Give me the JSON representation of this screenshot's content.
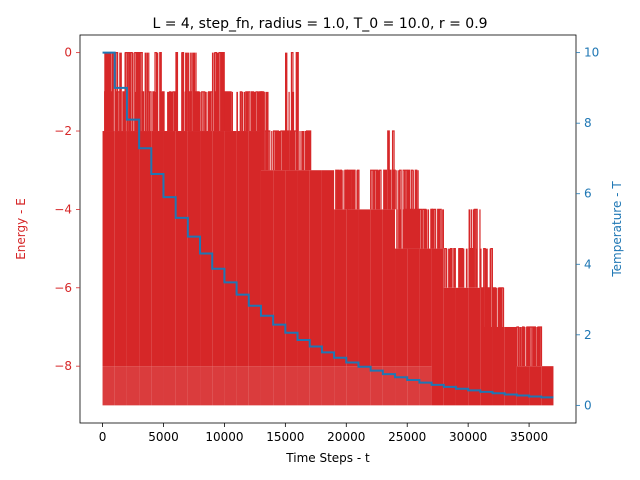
{
  "chart_data": {
    "type": "line",
    "title": "L = 4, step_fn, radius = 1.0, T_0 = 10.0, r = 0.9",
    "xlabel": "Time Steps - t",
    "ylabel_left": "Energy - E",
    "ylabel_right": "Temperature - T",
    "xlim": [
      -1850,
      38850
    ],
    "ylim_left": [
      -9.45,
      0.45
    ],
    "ylim_right": [
      -0.5,
      10.5
    ],
    "x_ticks": [
      0,
      5000,
      10000,
      15000,
      20000,
      25000,
      30000,
      35000
    ],
    "x_tick_labels": [
      "0",
      "5000",
      "10000",
      "15000",
      "20000",
      "25000",
      "30000",
      "35000"
    ],
    "y_left_ticks": [
      0,
      -2,
      -4,
      -6,
      -8
    ],
    "y_left_tick_labels": [
      "0",
      "−2",
      "−4",
      "−6",
      "−8"
    ],
    "y_right_ticks": [
      0,
      2,
      4,
      6,
      8,
      10
    ],
    "y_right_tick_labels": [
      "0",
      "2",
      "4",
      "6",
      "8",
      "10"
    ],
    "grid": false,
    "colors": {
      "energy": "#d62728",
      "temperature": "#1f77b4"
    },
    "series": [
      {
        "axis": "left",
        "note": "noisy energy trace; envelope per step-block",
        "blocks": [
          {
            "x0": 0,
            "x1": 1000,
            "ymin": -9,
            "ymax": 0,
            "dense_low": -8,
            "dense_high": -2
          },
          {
            "x0": 1000,
            "x1": 2000,
            "ymin": -9,
            "ymax": 0,
            "dense_low": -8,
            "dense_high": -2
          },
          {
            "x0": 2000,
            "x1": 3000,
            "ymin": -9,
            "ymax": 0,
            "dense_low": -8,
            "dense_high": -2
          },
          {
            "x0": 3000,
            "x1": 4000,
            "ymin": -9,
            "ymax": 0,
            "dense_low": -8,
            "dense_high": -2
          },
          {
            "x0": 4000,
            "x1": 5000,
            "ymin": -9,
            "ymax": 0,
            "dense_low": -8,
            "dense_high": -2
          },
          {
            "x0": 5000,
            "x1": 6000,
            "ymin": -9,
            "ymax": -1,
            "dense_low": -8,
            "dense_high": -2
          },
          {
            "x0": 6000,
            "x1": 7000,
            "ymin": -9,
            "ymax": 0,
            "dense_low": -8,
            "dense_high": -2
          },
          {
            "x0": 7000,
            "x1": 8000,
            "ymin": -9,
            "ymax": 0,
            "dense_low": -8,
            "dense_high": -2
          },
          {
            "x0": 8000,
            "x1": 9000,
            "ymin": -9,
            "ymax": -1,
            "dense_low": -8,
            "dense_high": -2
          },
          {
            "x0": 9000,
            "x1": 10000,
            "ymin": -9,
            "ymax": 0,
            "dense_low": -8,
            "dense_high": -2
          },
          {
            "x0": 10000,
            "x1": 11000,
            "ymin": -9,
            "ymax": -1,
            "dense_low": -8,
            "dense_high": -2
          },
          {
            "x0": 11000,
            "x1": 12000,
            "ymin": -9,
            "ymax": -1,
            "dense_low": -8,
            "dense_high": -2
          },
          {
            "x0": 12000,
            "x1": 13000,
            "ymin": -9,
            "ymax": -1,
            "dense_low": -8,
            "dense_high": -2
          },
          {
            "x0": 13000,
            "x1": 14000,
            "ymin": -9,
            "ymax": -1,
            "dense_low": -8,
            "dense_high": -3
          },
          {
            "x0": 14000,
            "x1": 15000,
            "ymin": -9,
            "ymax": -2,
            "dense_low": -8,
            "dense_high": -3
          },
          {
            "x0": 15000,
            "x1": 16000,
            "ymin": -9,
            "ymax": 0,
            "dense_low": -8,
            "dense_high": -3
          },
          {
            "x0": 16000,
            "x1": 17000,
            "ymin": -9,
            "ymax": -2,
            "dense_low": -8,
            "dense_high": -3
          },
          {
            "x0": 17000,
            "x1": 18000,
            "ymin": -9,
            "ymax": -3,
            "dense_low": -8,
            "dense_high": -3
          },
          {
            "x0": 18000,
            "x1": 19000,
            "ymin": -9,
            "ymax": -3,
            "dense_low": -8,
            "dense_high": -3
          },
          {
            "x0": 19000,
            "x1": 20000,
            "ymin": -9,
            "ymax": -3,
            "dense_low": -8,
            "dense_high": -4
          },
          {
            "x0": 20000,
            "x1": 21000,
            "ymin": -9,
            "ymax": -3,
            "dense_low": -8,
            "dense_high": -4
          },
          {
            "x0": 21000,
            "x1": 22000,
            "ymin": -9,
            "ymax": -4,
            "dense_low": -8,
            "dense_high": -4
          },
          {
            "x0": 22000,
            "x1": 23000,
            "ymin": -9,
            "ymax": -3,
            "dense_low": -8,
            "dense_high": -4
          },
          {
            "x0": 23000,
            "x1": 24000,
            "ymin": -9,
            "ymax": -2,
            "dense_low": -8,
            "dense_high": -4
          },
          {
            "x0": 24000,
            "x1": 25000,
            "ymin": -9,
            "ymax": -3,
            "dense_low": -8,
            "dense_high": -5
          },
          {
            "x0": 25000,
            "x1": 26000,
            "ymin": -9,
            "ymax": -3,
            "dense_low": -8,
            "dense_high": -5
          },
          {
            "x0": 26000,
            "x1": 27000,
            "ymin": -9,
            "ymax": -4,
            "dense_low": -8,
            "dense_high": -5
          },
          {
            "x0": 27000,
            "x1": 28000,
            "ymin": -9,
            "ymax": -4,
            "dense_low": -9,
            "dense_high": -5
          },
          {
            "x0": 28000,
            "x1": 29000,
            "ymin": -9,
            "ymax": -5,
            "dense_low": -9,
            "dense_high": -6
          },
          {
            "x0": 29000,
            "x1": 30000,
            "ymin": -9,
            "ymax": -5,
            "dense_low": -9,
            "dense_high": -6
          },
          {
            "x0": 30000,
            "x1": 31000,
            "ymin": -9,
            "ymax": -4,
            "dense_low": -9,
            "dense_high": -6
          },
          {
            "x0": 31000,
            "x1": 32000,
            "ymin": -9,
            "ymax": -5,
            "dense_low": -9,
            "dense_high": -7
          },
          {
            "x0": 32000,
            "x1": 33000,
            "ymin": -9,
            "ymax": -6,
            "dense_low": -9,
            "dense_high": -7
          },
          {
            "x0": 33000,
            "x1": 34000,
            "ymin": -9,
            "ymax": -7,
            "dense_low": -9,
            "dense_high": -7
          },
          {
            "x0": 34000,
            "x1": 35000,
            "ymin": -9,
            "ymax": -7,
            "dense_low": -9,
            "dense_high": -8
          },
          {
            "x0": 35000,
            "x1": 36000,
            "ymin": -9,
            "ymax": -7,
            "dense_low": -9,
            "dense_high": -8
          },
          {
            "x0": 36000,
            "x1": 37000,
            "ymin": -9,
            "ymax": -8,
            "dense_low": -9,
            "dense_high": -8
          }
        ]
      },
      {
        "axis": "right",
        "step_x": [
          0,
          1000,
          2000,
          3000,
          4000,
          5000,
          6000,
          7000,
          8000,
          9000,
          10000,
          11000,
          12000,
          13000,
          14000,
          15000,
          16000,
          17000,
          18000,
          19000,
          20000,
          21000,
          22000,
          23000,
          24000,
          25000,
          26000,
          27000,
          28000,
          29000,
          30000,
          31000,
          32000,
          33000,
          34000,
          35000,
          36000,
          37000
        ],
        "step_y": [
          10.0,
          9.0,
          8.1,
          7.29,
          6.561,
          5.905,
          5.314,
          4.783,
          4.305,
          3.874,
          3.487,
          3.138,
          2.824,
          2.542,
          2.288,
          2.059,
          1.853,
          1.668,
          1.501,
          1.351,
          1.216,
          1.094,
          0.985,
          0.886,
          0.798,
          0.718,
          0.646,
          0.581,
          0.523,
          0.471,
          0.424,
          0.382,
          0.343,
          0.309,
          0.278,
          0.25,
          0.225
        ]
      }
    ]
  }
}
